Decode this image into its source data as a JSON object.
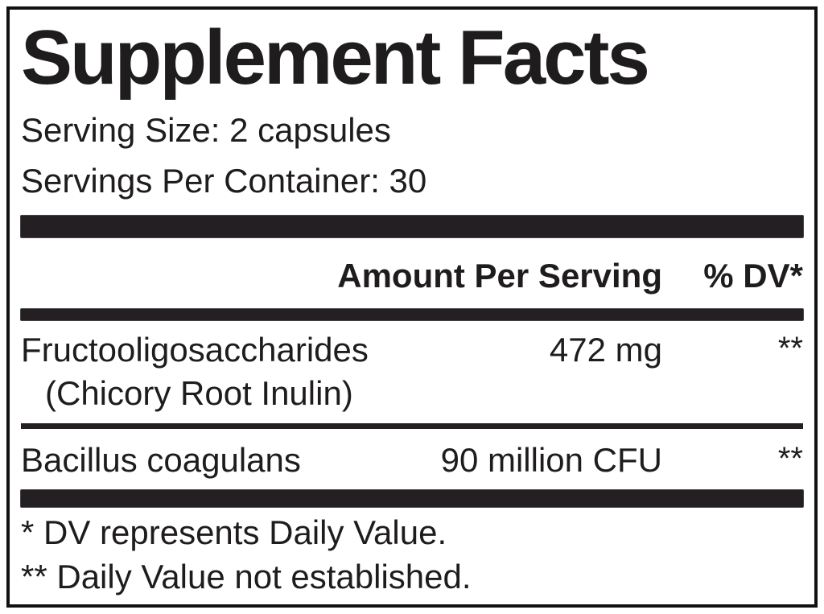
{
  "label": {
    "title": "Supplement Facts",
    "serving_size": "Serving Size: 2 capsules",
    "servings_per_container": "Servings Per Container: 30",
    "header": {
      "amount_label": "Amount Per Serving",
      "dv_label": "% DV*"
    },
    "rows": [
      {
        "name": "Fructooligosaccharides",
        "name_sub": "(Chicory Root Inulin)",
        "amount": "472 mg",
        "dv": "**"
      },
      {
        "name": "Bacillus coagulans",
        "name_sub": "",
        "amount": "90 million CFU",
        "dv": "**"
      }
    ],
    "footnotes": [
      "* DV represents Daily Value.",
      "** Daily Value not established."
    ],
    "colors": {
      "bar": "#231f22",
      "text": "#1f1c1e",
      "border": "#111111",
      "background": "#ffffff"
    }
  }
}
